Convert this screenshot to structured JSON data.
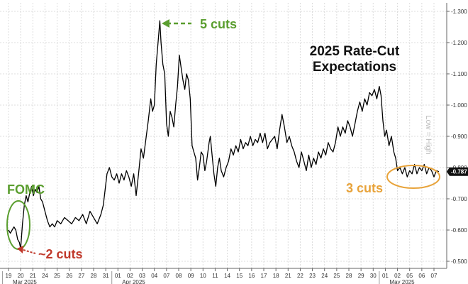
{
  "chart_data": {
    "type": "line",
    "title_line1": "2025 Rate-Cut",
    "title_line2": "Expectations",
    "y_axis_title": "Low = High",
    "yaxis_side": "right",
    "yaxis_reversed": true,
    "ylim": [
      -1.3,
      -0.5
    ],
    "yticks": [
      {
        "value": -1.3,
        "label": "-1.300"
      },
      {
        "value": -1.2,
        "label": "-1.200"
      },
      {
        "value": -1.1,
        "label": "-1.100"
      },
      {
        "value": -1.0,
        "label": "-1.000"
      },
      {
        "value": -0.9,
        "label": "-0.900"
      },
      {
        "value": -0.8,
        "label": "-0.800"
      },
      {
        "value": -0.7,
        "label": "-0.700"
      },
      {
        "value": -0.6,
        "label": "-0.600"
      },
      {
        "value": -0.5,
        "label": "-0.500"
      }
    ],
    "xticks": [
      "19",
      "20",
      "21",
      "24",
      "25",
      "26",
      "27",
      "28",
      "31",
      "01",
      "02",
      "03",
      "04",
      "07",
      "08",
      "09",
      "10",
      "11",
      "14",
      "15",
      "16",
      "17",
      "18",
      "21",
      "22",
      "23",
      "24",
      "25",
      "28",
      "29",
      "30",
      "01",
      "02",
      "05",
      "06",
      "07"
    ],
    "months": [
      {
        "label": "Mar 2025",
        "at_tick": 0
      },
      {
        "label": "Apr 2025",
        "at_tick": 9
      },
      {
        "label": "May 2025",
        "at_tick": 31
      }
    ],
    "grid": true,
    "last_value": -0.787,
    "last_value_label": "-0.787",
    "series": [
      {
        "color": "#000000",
        "points": [
          [
            0.0,
            -0.6
          ],
          [
            0.15,
            -0.59
          ],
          [
            0.3,
            -0.6
          ],
          [
            0.45,
            -0.61
          ],
          [
            0.6,
            -0.6
          ],
          [
            0.75,
            -0.57
          ],
          [
            0.9,
            -0.56
          ],
          [
            1.0,
            -0.54
          ],
          [
            1.15,
            -0.62
          ],
          [
            1.3,
            -0.68
          ],
          [
            1.45,
            -0.71
          ],
          [
            1.6,
            -0.69
          ],
          [
            1.75,
            -0.72
          ],
          [
            1.9,
            -0.74
          ],
          [
            2.05,
            -0.71
          ],
          [
            2.2,
            -0.73
          ],
          [
            2.35,
            -0.72
          ],
          [
            2.5,
            -0.74
          ],
          [
            2.65,
            -0.7
          ],
          [
            2.8,
            -0.69
          ],
          [
            3.0,
            -0.66
          ],
          [
            3.2,
            -0.63
          ],
          [
            3.4,
            -0.61
          ],
          [
            3.6,
            -0.62
          ],
          [
            3.8,
            -0.61
          ],
          [
            4.0,
            -0.63
          ],
          [
            4.3,
            -0.62
          ],
          [
            4.6,
            -0.64
          ],
          [
            4.9,
            -0.63
          ],
          [
            5.2,
            -0.62
          ],
          [
            5.5,
            -0.64
          ],
          [
            5.8,
            -0.63
          ],
          [
            6.1,
            -0.65
          ],
          [
            6.4,
            -0.62
          ],
          [
            6.7,
            -0.66
          ],
          [
            7.0,
            -0.64
          ],
          [
            7.3,
            -0.62
          ],
          [
            7.6,
            -0.65
          ],
          [
            7.8,
            -0.68
          ],
          [
            7.95,
            -0.73
          ],
          [
            8.1,
            -0.78
          ],
          [
            8.3,
            -0.8
          ],
          [
            8.5,
            -0.77
          ],
          [
            8.7,
            -0.76
          ],
          [
            8.9,
            -0.78
          ],
          [
            9.1,
            -0.75
          ],
          [
            9.3,
            -0.78
          ],
          [
            9.5,
            -0.76
          ],
          [
            9.7,
            -0.79
          ],
          [
            9.9,
            -0.77
          ],
          [
            10.1,
            -0.74
          ],
          [
            10.3,
            -0.78
          ],
          [
            10.5,
            -0.71
          ],
          [
            10.7,
            -0.78
          ],
          [
            10.9,
            -0.86
          ],
          [
            11.1,
            -0.83
          ],
          [
            11.3,
            -0.89
          ],
          [
            11.5,
            -0.95
          ],
          [
            11.7,
            -1.02
          ],
          [
            11.85,
            -0.98
          ],
          [
            12.0,
            -1.0
          ],
          [
            12.15,
            -1.13
          ],
          [
            12.3,
            -1.2
          ],
          [
            12.45,
            -1.27
          ],
          [
            12.55,
            -1.2
          ],
          [
            12.7,
            -1.13
          ],
          [
            12.85,
            -1.1
          ],
          [
            13.0,
            -0.94
          ],
          [
            13.15,
            -0.9
          ],
          [
            13.3,
            -0.98
          ],
          [
            13.45,
            -0.96
          ],
          [
            13.6,
            -0.93
          ],
          [
            13.75,
            -1.0
          ],
          [
            13.9,
            -1.06
          ],
          [
            14.05,
            -1.16
          ],
          [
            14.2,
            -1.12
          ],
          [
            14.35,
            -1.08
          ],
          [
            14.5,
            -1.05
          ],
          [
            14.65,
            -1.1
          ],
          [
            14.8,
            -1.08
          ],
          [
            14.95,
            -1.02
          ],
          [
            15.1,
            -0.87
          ],
          [
            15.25,
            -0.85
          ],
          [
            15.4,
            -0.83
          ],
          [
            15.55,
            -0.76
          ],
          [
            15.7,
            -0.8
          ],
          [
            15.85,
            -0.85
          ],
          [
            16.0,
            -0.84
          ],
          [
            16.15,
            -0.79
          ],
          [
            16.3,
            -0.82
          ],
          [
            16.5,
            -0.88
          ],
          [
            16.6,
            -0.9
          ],
          [
            16.75,
            -0.84
          ],
          [
            16.9,
            -0.78
          ],
          [
            17.05,
            -0.74
          ],
          [
            17.2,
            -0.8
          ],
          [
            17.35,
            -0.83
          ],
          [
            17.5,
            -0.79
          ],
          [
            17.7,
            -0.77
          ],
          [
            17.9,
            -0.8
          ],
          [
            18.1,
            -0.82
          ],
          [
            18.3,
            -0.86
          ],
          [
            18.5,
            -0.84
          ],
          [
            18.7,
            -0.87
          ],
          [
            18.9,
            -0.85
          ],
          [
            19.1,
            -0.89
          ],
          [
            19.3,
            -0.86
          ],
          [
            19.5,
            -0.88
          ],
          [
            19.7,
            -0.87
          ],
          [
            19.9,
            -0.9
          ],
          [
            20.1,
            -0.87
          ],
          [
            20.3,
            -0.89
          ],
          [
            20.5,
            -0.88
          ],
          [
            20.7,
            -0.91
          ],
          [
            20.9,
            -0.88
          ],
          [
            21.1,
            -0.91
          ],
          [
            21.3,
            -0.86
          ],
          [
            21.5,
            -0.88
          ],
          [
            21.7,
            -0.89
          ],
          [
            21.9,
            -0.9
          ],
          [
            22.1,
            -0.86
          ],
          [
            22.3,
            -0.92
          ],
          [
            22.5,
            -0.97
          ],
          [
            22.7,
            -0.93
          ],
          [
            22.9,
            -0.88
          ],
          [
            23.1,
            -0.9
          ],
          [
            23.3,
            -0.87
          ],
          [
            23.5,
            -0.85
          ],
          [
            23.7,
            -0.82
          ],
          [
            23.9,
            -0.8
          ],
          [
            24.1,
            -0.85
          ],
          [
            24.3,
            -0.82
          ],
          [
            24.5,
            -0.79
          ],
          [
            24.7,
            -0.84
          ],
          [
            24.9,
            -0.8
          ],
          [
            25.1,
            -0.83
          ],
          [
            25.3,
            -0.81
          ],
          [
            25.5,
            -0.85
          ],
          [
            25.7,
            -0.83
          ],
          [
            25.9,
            -0.86
          ],
          [
            26.1,
            -0.84
          ],
          [
            26.3,
            -0.88
          ],
          [
            26.5,
            -0.86
          ],
          [
            26.7,
            -0.85
          ],
          [
            26.9,
            -0.88
          ],
          [
            27.1,
            -0.93
          ],
          [
            27.3,
            -0.9
          ],
          [
            27.5,
            -0.93
          ],
          [
            27.7,
            -0.91
          ],
          [
            27.9,
            -0.95
          ],
          [
            28.1,
            -0.93
          ],
          [
            28.3,
            -0.9
          ],
          [
            28.5,
            -0.94
          ],
          [
            28.7,
            -0.98
          ],
          [
            28.9,
            -1.01
          ],
          [
            29.1,
            -0.98
          ],
          [
            29.3,
            -1.02
          ],
          [
            29.5,
            -1.0
          ],
          [
            29.7,
            -1.04
          ],
          [
            29.9,
            -1.03
          ],
          [
            30.1,
            -1.05
          ],
          [
            30.3,
            -1.02
          ],
          [
            30.5,
            -1.06
          ],
          [
            30.65,
            -1.03
          ],
          [
            30.8,
            -0.95
          ],
          [
            30.95,
            -0.9
          ],
          [
            31.1,
            -0.92
          ],
          [
            31.3,
            -0.87
          ],
          [
            31.5,
            -0.9
          ],
          [
            31.7,
            -0.85
          ],
          [
            31.85,
            -0.83
          ],
          [
            32.0,
            -0.79
          ],
          [
            32.2,
            -0.8
          ],
          [
            32.4,
            -0.78
          ],
          [
            32.6,
            -0.8
          ],
          [
            32.8,
            -0.77
          ],
          [
            33.0,
            -0.79
          ],
          [
            33.2,
            -0.78
          ],
          [
            33.4,
            -0.81
          ],
          [
            33.6,
            -0.78
          ],
          [
            33.8,
            -0.8
          ],
          [
            34.0,
            -0.79
          ],
          [
            34.2,
            -0.81
          ],
          [
            34.4,
            -0.78
          ],
          [
            34.6,
            -0.8
          ],
          [
            34.8,
            -0.79
          ],
          [
            35.0,
            -0.77
          ],
          [
            35.2,
            -0.79
          ],
          [
            35.4,
            -0.787
          ]
        ]
      }
    ],
    "annotations": [
      {
        "text": "5 cuts",
        "color": "#5a9e2f"
      },
      {
        "text": "~2 cuts",
        "color": "#c0392b"
      },
      {
        "text": "FOMC",
        "color": "#5a9e2f"
      },
      {
        "text": "3 cuts",
        "color": "#e8a33a"
      }
    ]
  }
}
